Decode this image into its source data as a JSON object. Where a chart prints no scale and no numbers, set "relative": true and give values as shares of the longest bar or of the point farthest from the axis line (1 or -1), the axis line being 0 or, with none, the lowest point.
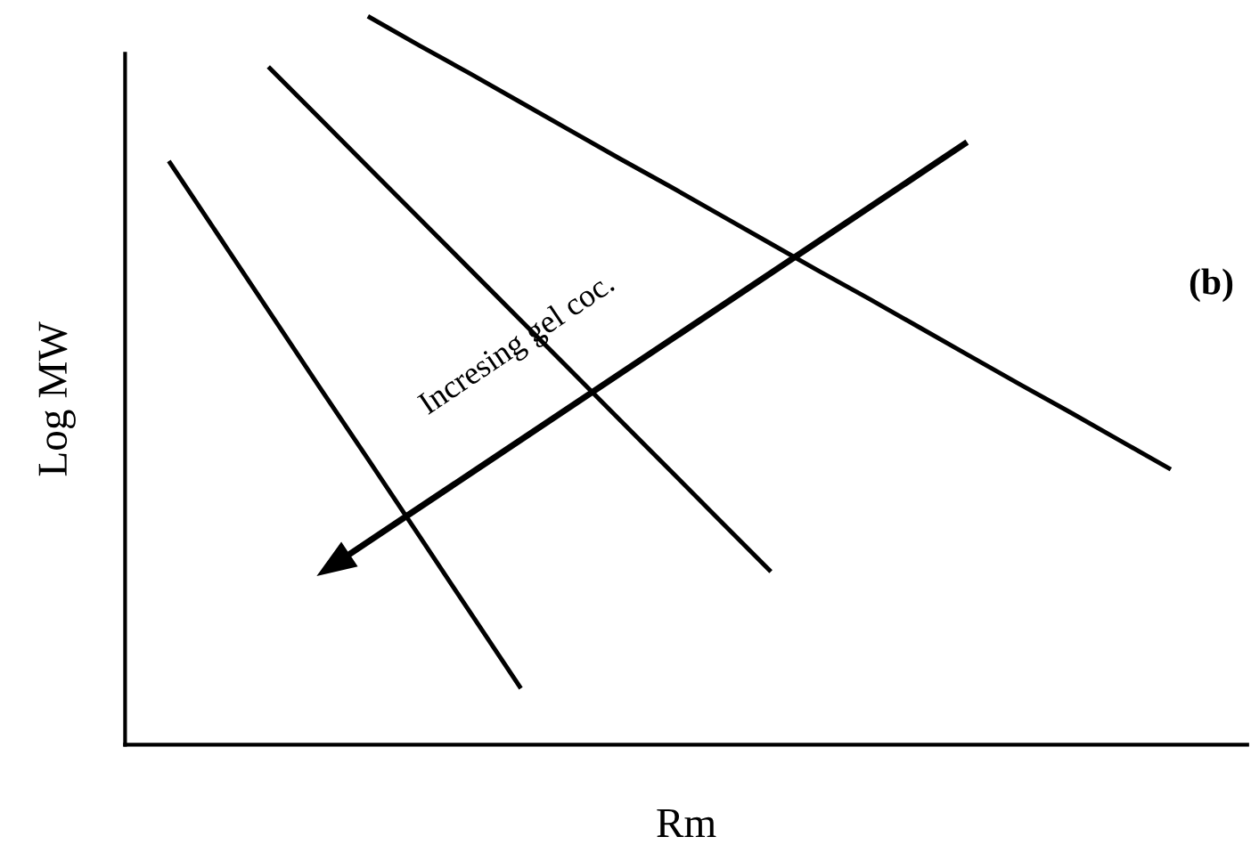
{
  "chart_data": {
    "type": "line",
    "relative": true,
    "xlabel": "Rm",
    "ylabel": "Log MW",
    "legend": false,
    "marker": "none",
    "line_style": "solid",
    "annotations": [
      "Incresing gel coc.",
      "(b)"
    ],
    "categories": [
      null,
      null,
      null,
      null,
      null,
      null,
      null,
      null,
      null,
      null,
      null,
      null,
      null,
      null,
      null,
      null,
      null,
      null,
      null,
      null,
      null
    ],
    "series": [
      {
        "color": "#000000",
        "values": [
          0.8,
          0.697,
          0.594,
          0.491,
          0.389,
          0.286,
          0.183,
          0.08,
          null,
          null,
          null,
          null,
          null,
          null,
          null,
          null,
          null,
          null,
          null,
          null,
          null
        ]
      },
      {
        "color": "#000000",
        "values": [
          null,
          null,
          0.93,
          0.861,
          0.792,
          0.723,
          0.654,
          0.585,
          0.516,
          0.447,
          0.378,
          0.309,
          0.24,
          null,
          null,
          null,
          null,
          null,
          null,
          null,
          null
        ]
      },
      {
        "color": "#000000",
        "values": [
          null,
          null,
          null,
          null,
          1.0,
          0.961,
          0.923,
          0.884,
          0.845,
          0.806,
          0.768,
          0.729,
          0.69,
          0.651,
          0.613,
          0.574,
          0.535,
          0.496,
          0.458,
          0.419,
          0.38
        ]
      }
    ]
  }
}
